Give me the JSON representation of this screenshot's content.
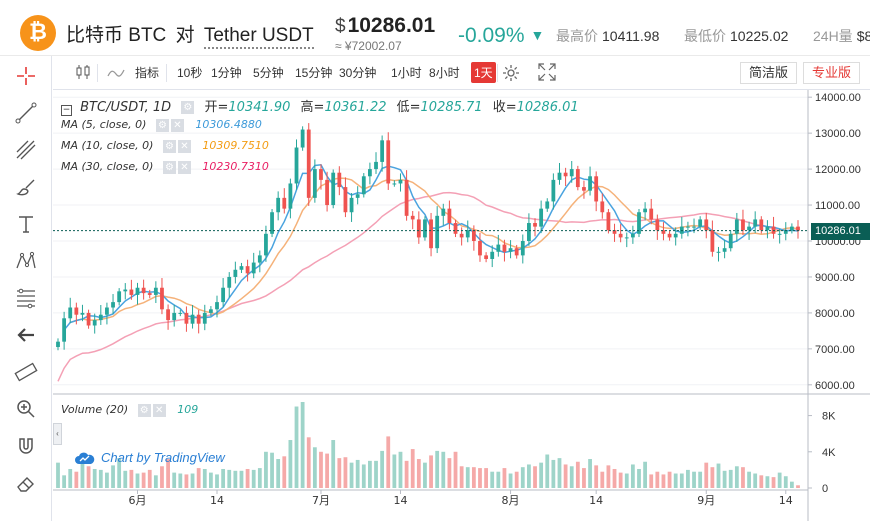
{
  "header": {
    "coin_symbol": "₿",
    "pair_base": "比特币 BTC",
    "pair_sep": "对",
    "pair_quote": "Tether USDT",
    "currency_sign": "$",
    "last_price": "10286.01",
    "cny_price": "≈ ¥72002.07",
    "change_pct": "-0.09%",
    "change_arrow": "▼",
    "high_label": "最高价",
    "high_value": "10411.98",
    "low_label": "最低价",
    "low_value": "10225.02",
    "vol_label": "24H量",
    "vol_value": "$8"
  },
  "toolbar": {
    "indicators_label": "指标",
    "intervals": [
      "10秒",
      "1分钟",
      "5分钟",
      "15分钟",
      "30分钟",
      "1小时",
      "8小时",
      "1天"
    ],
    "active_interval": "1天",
    "simple_version": "简洁版",
    "pro_version": "专业版"
  },
  "legend": {
    "symbol": "BTC/USDT, 1D",
    "open_label": "开=",
    "open_value": "10341.90",
    "high_label": "高=",
    "high_value": "10361.22",
    "low_label": "低=",
    "low_value": "10285.71",
    "close_label": "收=",
    "close_value": "10286.01",
    "ma": [
      {
        "label": "MA (5, close, 0)",
        "value": "10306.4880",
        "color": "#3d9ad9"
      },
      {
        "label": "MA (10, close, 0)",
        "value": "10309.7510",
        "color": "#f39c12"
      },
      {
        "label": "MA (30, close, 0)",
        "value": "10230.7310",
        "color": "#e91e63"
      }
    ],
    "volume_label": "Volume (20)",
    "volume_value": "109",
    "brand": "Chart by TradingView"
  },
  "colors": {
    "up": "#26a69a",
    "down": "#ef5350",
    "vol_up": "#9ed4c9",
    "vol_down": "#f5a9a8",
    "ma5": "#4aa3df",
    "ma10": "#f5b27a",
    "ma30": "#f4a0b5",
    "accent": "#e53935"
  },
  "chart_data": {
    "type": "candlestick",
    "price_axis": [
      "14000.00",
      "13000.00",
      "12000.00",
      "11000.00",
      "10000.00",
      "9000.00",
      "8000.00",
      "7000.00",
      "6000.00"
    ],
    "price_axis_values": [
      14000,
      13000,
      12000,
      11000,
      10000,
      9000,
      8000,
      7000,
      6000
    ],
    "volume_axis": [
      "8K",
      "4K",
      "0"
    ],
    "volume_axis_values": [
      8000,
      4000,
      0
    ],
    "x_ticks": [
      "6月",
      "14",
      "7月",
      "14",
      "8月",
      "14",
      "9月",
      "14"
    ],
    "last_price_tag": "10286.01",
    "ylim": [
      5800,
      14200
    ],
    "volume_max": 9500,
    "close": [
      7200,
      7850,
      8150,
      7950,
      8000,
      7650,
      7800,
      7950,
      8150,
      8300,
      8600,
      8650,
      8500,
      8700,
      8550,
      8500,
      8700,
      8100,
      7800,
      8000,
      8000,
      7700,
      7950,
      7700,
      8000,
      8100,
      8300,
      8700,
      9000,
      9200,
      9300,
      9100,
      9400,
      9600,
      10200,
      10800,
      11200,
      10900,
      11600,
      12600,
      13100,
      11200,
      12000,
      11700,
      11000,
      11900,
      11500,
      10800,
      11200,
      11300,
      11800,
      12000,
      12200,
      12800,
      11600,
      11600,
      11700,
      10700,
      10600,
      10100,
      10600,
      9800,
      10700,
      10900,
      10500,
      10200,
      10100,
      10300,
      10000,
      9600,
      9500,
      9700,
      9900,
      9700,
      9800,
      9600,
      10000,
      10500,
      10400,
      10900,
      11100,
      11700,
      11900,
      11800,
      12000,
      11500,
      11400,
      11800,
      11100,
      10800,
      10300,
      10200,
      10100,
      10100,
      10200,
      10800,
      10900,
      10600,
      10300,
      10200,
      10100,
      10200,
      10400,
      10400,
      10400,
      10600,
      10300,
      9700,
      9700,
      9800,
      10200,
      10600,
      10300,
      10400,
      10600,
      10300,
      10400,
      10200,
      10200,
      10300,
      10400,
      10290
    ],
    "volume": [
      2800,
      1400,
      2100,
      1800,
      2700,
      2400,
      2100,
      2000,
      1700,
      2500,
      3300,
      1900,
      2000,
      1600,
      1700,
      2000,
      1400,
      2400,
      3200,
      1700,
      1600,
      1500,
      1600,
      2200,
      2100,
      1700,
      1500,
      2100,
      2000,
      1900,
      1900,
      2100,
      2000,
      2200,
      4000,
      3900,
      3200,
      3500,
      5300,
      9000,
      9500,
      5600,
      4500,
      4000,
      3800,
      5300,
      3300,
      3400,
      2800,
      3100,
      2600,
      3000,
      3000,
      4100,
      5700,
      3700,
      4000,
      3000,
      4300,
      3200,
      2800,
      3600,
      4100,
      4000,
      3300,
      4000,
      2400,
      2300,
      2300,
      2200,
      2200,
      1800,
      1800,
      2200,
      1600,
      1800,
      2300,
      2600,
      2400,
      2800,
      3700,
      3100,
      3300,
      2600,
      2400,
      2900,
      2200,
      3200,
      2500,
      1800,
      2500,
      2100,
      1700,
      1600,
      2600,
      2100,
      2900,
      1500,
      1800,
      1500,
      1800,
      1600,
      1600,
      2000,
      1800,
      1800,
      2800,
      2300,
      2700,
      1900,
      2000,
      2400,
      2300,
      1800,
      1600,
      1400,
      1300,
      1200,
      1700,
      1300,
      700,
      300
    ]
  }
}
